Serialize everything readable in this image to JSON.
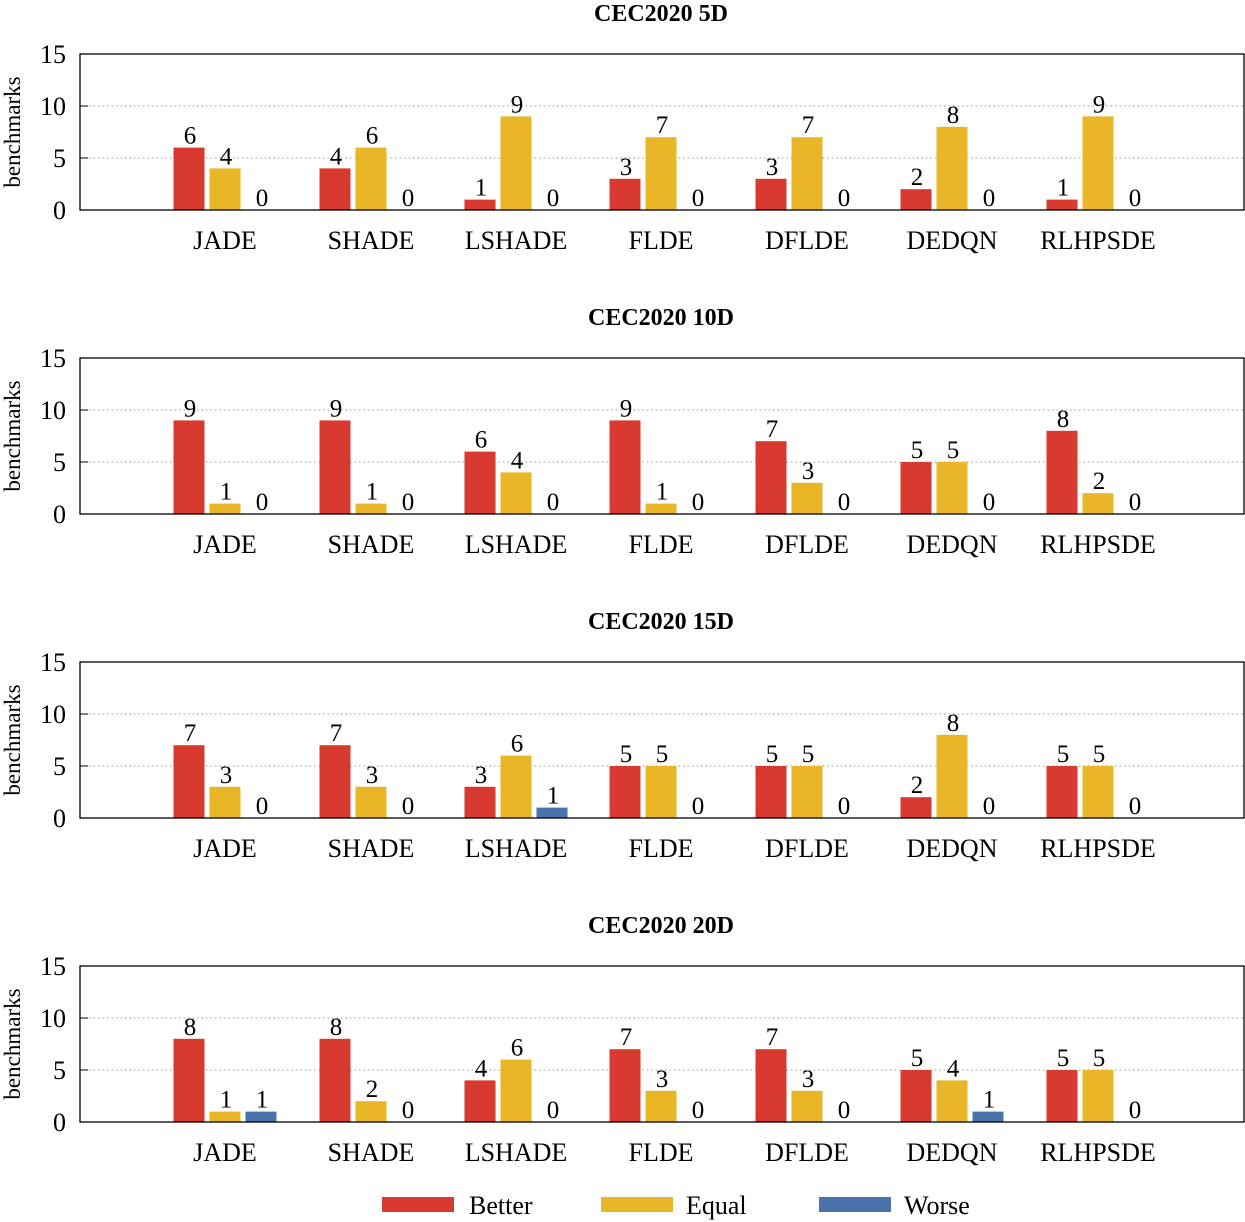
{
  "chart_data": [
    {
      "type": "bar",
      "title": "CEC2020 5D",
      "ylabel": "benchmarks",
      "ylim": [
        0,
        15
      ],
      "yticks": [
        "0",
        "5",
        "10",
        "15"
      ],
      "grid": true,
      "categories": [
        "JADE",
        "SHADE",
        "LSHADE",
        "FLDE",
        "DFLDE",
        "DEDQN",
        "RLHPSDE"
      ],
      "series": [
        {
          "name": "Better",
          "color": "#d93a2f",
          "values": [
            6,
            4,
            1,
            3,
            3,
            2,
            1
          ]
        },
        {
          "name": "Equal",
          "color": "#e8b626",
          "values": [
            4,
            6,
            9,
            7,
            7,
            8,
            9
          ]
        },
        {
          "name": "Worse",
          "color": "#4a72ad",
          "values": [
            0,
            0,
            0,
            0,
            0,
            0,
            0
          ]
        }
      ]
    },
    {
      "type": "bar",
      "title": "CEC2020 10D",
      "ylabel": "benchmarks",
      "ylim": [
        0,
        15
      ],
      "yticks": [
        "0",
        "5",
        "10",
        "15"
      ],
      "grid": true,
      "categories": [
        "JADE",
        "SHADE",
        "LSHADE",
        "FLDE",
        "DFLDE",
        "DEDQN",
        "RLHPSDE"
      ],
      "series": [
        {
          "name": "Better",
          "color": "#d93a2f",
          "values": [
            9,
            9,
            6,
            9,
            7,
            5,
            8
          ]
        },
        {
          "name": "Equal",
          "color": "#e8b626",
          "values": [
            1,
            1,
            4,
            1,
            3,
            5,
            2
          ]
        },
        {
          "name": "Worse",
          "color": "#4a72ad",
          "values": [
            0,
            0,
            0,
            0,
            0,
            0,
            0
          ]
        }
      ]
    },
    {
      "type": "bar",
      "title": "CEC2020 15D",
      "ylabel": "benchmarks",
      "ylim": [
        0,
        15
      ],
      "yticks": [
        "0",
        "5",
        "10",
        "15"
      ],
      "grid": true,
      "categories": [
        "JADE",
        "SHADE",
        "LSHADE",
        "FLDE",
        "DFLDE",
        "DEDQN",
        "RLHPSDE"
      ],
      "series": [
        {
          "name": "Better",
          "color": "#d93a2f",
          "values": [
            7,
            7,
            3,
            5,
            5,
            2,
            5
          ]
        },
        {
          "name": "Equal",
          "color": "#e8b626",
          "values": [
            3,
            3,
            6,
            5,
            5,
            8,
            5
          ]
        },
        {
          "name": "Worse",
          "color": "#4a72ad",
          "values": [
            0,
            0,
            1,
            0,
            0,
            0,
            0
          ]
        }
      ]
    },
    {
      "type": "bar",
      "title": "CEC2020 20D",
      "ylabel": "benchmarks",
      "ylim": [
        0,
        15
      ],
      "yticks": [
        "0",
        "5",
        "10",
        "15"
      ],
      "grid": true,
      "categories": [
        "JADE",
        "SHADE",
        "LSHADE",
        "FLDE",
        "DFLDE",
        "DEDQN",
        "RLHPSDE"
      ],
      "series": [
        {
          "name": "Better",
          "color": "#d93a2f",
          "values": [
            8,
            8,
            4,
            7,
            7,
            5,
            5
          ]
        },
        {
          "name": "Equal",
          "color": "#e8b626",
          "values": [
            1,
            2,
            6,
            3,
            3,
            4,
            5
          ]
        },
        {
          "name": "Worse",
          "color": "#4a72ad",
          "values": [
            1,
            0,
            0,
            0,
            0,
            1,
            0
          ]
        }
      ]
    }
  ],
  "legend": {
    "position": "bottom-center",
    "items": [
      {
        "label": "Better",
        "color": "#d93a2f"
      },
      {
        "label": "Equal",
        "color": "#e8b626"
      },
      {
        "label": "Worse",
        "color": "#4a72ad"
      }
    ]
  }
}
